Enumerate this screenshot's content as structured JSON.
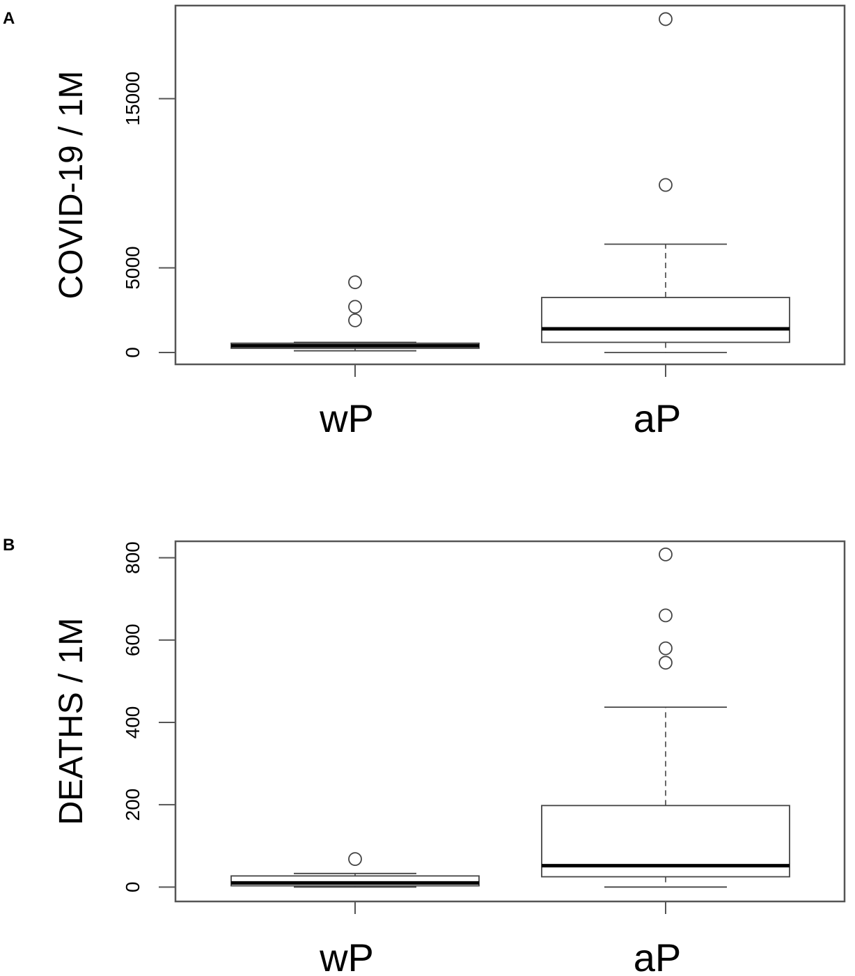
{
  "chart_data": [
    {
      "type": "boxplot",
      "panel": "A",
      "ylabel": "COVID-19 / 1M",
      "categories": [
        "wP",
        "aP"
      ],
      "yticks": [
        0,
        5000,
        15000
      ],
      "ylim": [
        -700,
        20500
      ],
      "boxes": [
        {
          "category": "wP",
          "whisker_low": 100,
          "q1": 250,
          "median": 400,
          "q3": 550,
          "whisker_high": 600,
          "outliers": [
            1900,
            2700,
            4150
          ]
        },
        {
          "category": "aP",
          "whisker_low": 0,
          "q1": 600,
          "median": 1400,
          "q3": 3250,
          "whisker_high": 6400,
          "outliers": [
            9900,
            19700
          ]
        }
      ]
    },
    {
      "type": "boxplot",
      "panel": "B",
      "ylabel": "DEATHS / 1M",
      "categories": [
        "wP",
        "aP"
      ],
      "yticks": [
        0,
        200,
        400,
        600,
        800
      ],
      "ylim": [
        -35,
        840
      ],
      "boxes": [
        {
          "category": "wP",
          "whisker_low": 0,
          "q1": 3,
          "median": 10,
          "q3": 27,
          "whisker_high": 33,
          "outliers": [
            68
          ]
        },
        {
          "category": "aP",
          "whisker_low": 0,
          "q1": 25,
          "median": 52,
          "q3": 198,
          "whisker_high": 437,
          "outliers": [
            545,
            580,
            660,
            808
          ]
        }
      ]
    }
  ]
}
